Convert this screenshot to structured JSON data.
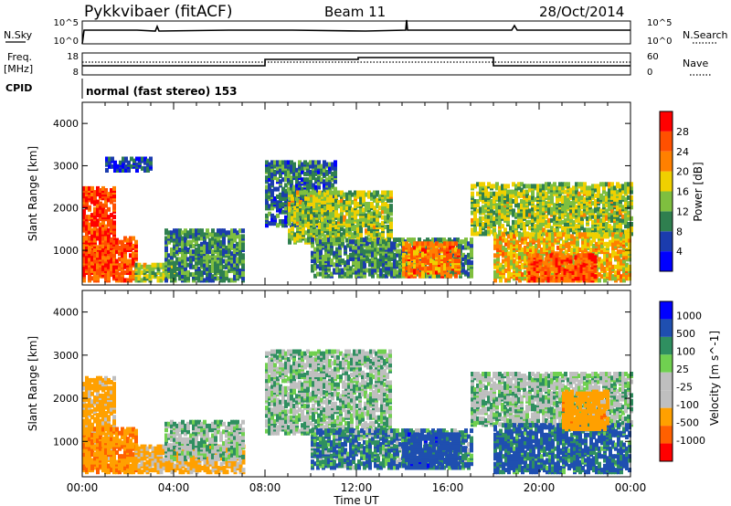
{
  "header": {
    "station": "Pykkvibaer (fitACF)",
    "beam": "Beam 11",
    "date": "28/Oct/2014"
  },
  "strips": {
    "nsky_label": "N.Sky",
    "nsearch_label": "N.Search",
    "freq_label_1": "Freq.",
    "freq_label_2": "[MHz]",
    "nave_label": "Nave",
    "cpid_label": "CPID",
    "cpid_text": "normal (fast stereo) 153",
    "noise_ticks_left": [
      "10^5",
      "10^0"
    ],
    "noise_ticks_right": [
      "10^5",
      "10^0"
    ],
    "freq_ticks": [
      "18",
      "8"
    ],
    "nave_ticks": [
      "60",
      "0"
    ]
  },
  "colors": {
    "power": [
      "#0000ff",
      "#1b3cae",
      "#2f7f4f",
      "#7fbf3f",
      "#f0d000",
      "#ff8000",
      "#ff5000",
      "#ff0000"
    ],
    "velocity": [
      "#ff0000",
      "#ff6000",
      "#ffa000",
      "#bfbfbf",
      "#bfbfbf",
      "#70d050",
      "#2f8f60",
      "#1f4fb0",
      "#0000ff"
    ],
    "ground_scatter": "#bfbfbf"
  },
  "chart_data": [
    {
      "type": "heatmap",
      "name": "power",
      "xlabel": "",
      "ylabel": "Slant Range [km]",
      "xlim": [
        0,
        24
      ],
      "ylim": [
        180,
        4500
      ],
      "yticks": [
        "1000",
        "2000",
        "3000",
        "4000"
      ],
      "colorbar_label": "Power [dB]",
      "colorbar_ticks": [
        "4",
        "8",
        "12",
        "16",
        "20",
        "24",
        "28"
      ],
      "colorbar_range": [
        0,
        30
      ],
      "regions": [
        {
          "x": [
            0.0,
            1.4
          ],
          "y": [
            400,
            2500
          ],
          "value": 26
        },
        {
          "x": [
            0.0,
            2.3
          ],
          "y": [
            300,
            1300
          ],
          "value": 24
        },
        {
          "x": [
            2.3,
            4.0
          ],
          "y": [
            300,
            700
          ],
          "value": 14
        },
        {
          "x": [
            3.6,
            7.0
          ],
          "y": [
            300,
            1500
          ],
          "value": 10
        },
        {
          "x": [
            1.0,
            3.0
          ],
          "y": [
            2900,
            3200
          ],
          "value": 6
        },
        {
          "x": [
            8.0,
            11.0
          ],
          "y": [
            1600,
            3100
          ],
          "value": 8
        },
        {
          "x": [
            9.0,
            13.5
          ],
          "y": [
            1200,
            2400
          ],
          "value": 14
        },
        {
          "x": [
            10.0,
            17.0
          ],
          "y": [
            400,
            1300
          ],
          "value": 10
        },
        {
          "x": [
            14.0,
            16.5
          ],
          "y": [
            400,
            1200
          ],
          "value": 22
        },
        {
          "x": [
            17.0,
            24.0
          ],
          "y": [
            1400,
            2600
          ],
          "value": 14
        },
        {
          "x": [
            18.0,
            24.0
          ],
          "y": [
            300,
            1400
          ],
          "value": 18
        },
        {
          "x": [
            19.5,
            22.5
          ],
          "y": [
            300,
            900
          ],
          "value": 24
        }
      ]
    },
    {
      "type": "heatmap",
      "name": "velocity",
      "xlabel": "Time UT",
      "ylabel": "Slant Range [km]",
      "xlim": [
        0,
        24
      ],
      "ylim": [
        180,
        4500
      ],
      "xticks": [
        "00:00",
        "04:00",
        "08:00",
        "12:00",
        "16:00",
        "20:00",
        "00:00"
      ],
      "yticks": [
        "1000",
        "2000",
        "3000",
        "4000"
      ],
      "colorbar_label": "Velocity [m s^-1]",
      "colorbar_ticks": [
        "1000",
        "500",
        "100",
        "25",
        "-25",
        "-100",
        "-500",
        "-1000"
      ],
      "regions": [
        {
          "x": [
            0.0,
            1.4
          ],
          "y": [
            400,
            2500
          ],
          "value": -200
        },
        {
          "x": [
            0.0,
            2.3
          ],
          "y": [
            300,
            1300
          ],
          "value": -400
        },
        {
          "x": [
            2.3,
            7.0
          ],
          "y": [
            300,
            900
          ],
          "value": -150
        },
        {
          "x": [
            3.6,
            7.0
          ],
          "y": [
            600,
            1500
          ],
          "value": 0
        },
        {
          "x": [
            8.0,
            13.5
          ],
          "y": [
            1200,
            3100
          ],
          "value": 0
        },
        {
          "x": [
            10.0,
            17.0
          ],
          "y": [
            400,
            1300
          ],
          "value": 80
        },
        {
          "x": [
            14.0,
            16.5
          ],
          "y": [
            400,
            1200
          ],
          "value": 300
        },
        {
          "x": [
            17.0,
            24.0
          ],
          "y": [
            1400,
            2600
          ],
          "value": 0
        },
        {
          "x": [
            18.0,
            24.0
          ],
          "y": [
            300,
            1400
          ],
          "value": 150
        },
        {
          "x": [
            21.0,
            23.0
          ],
          "y": [
            1300,
            2200
          ],
          "value": -300
        }
      ]
    }
  ]
}
